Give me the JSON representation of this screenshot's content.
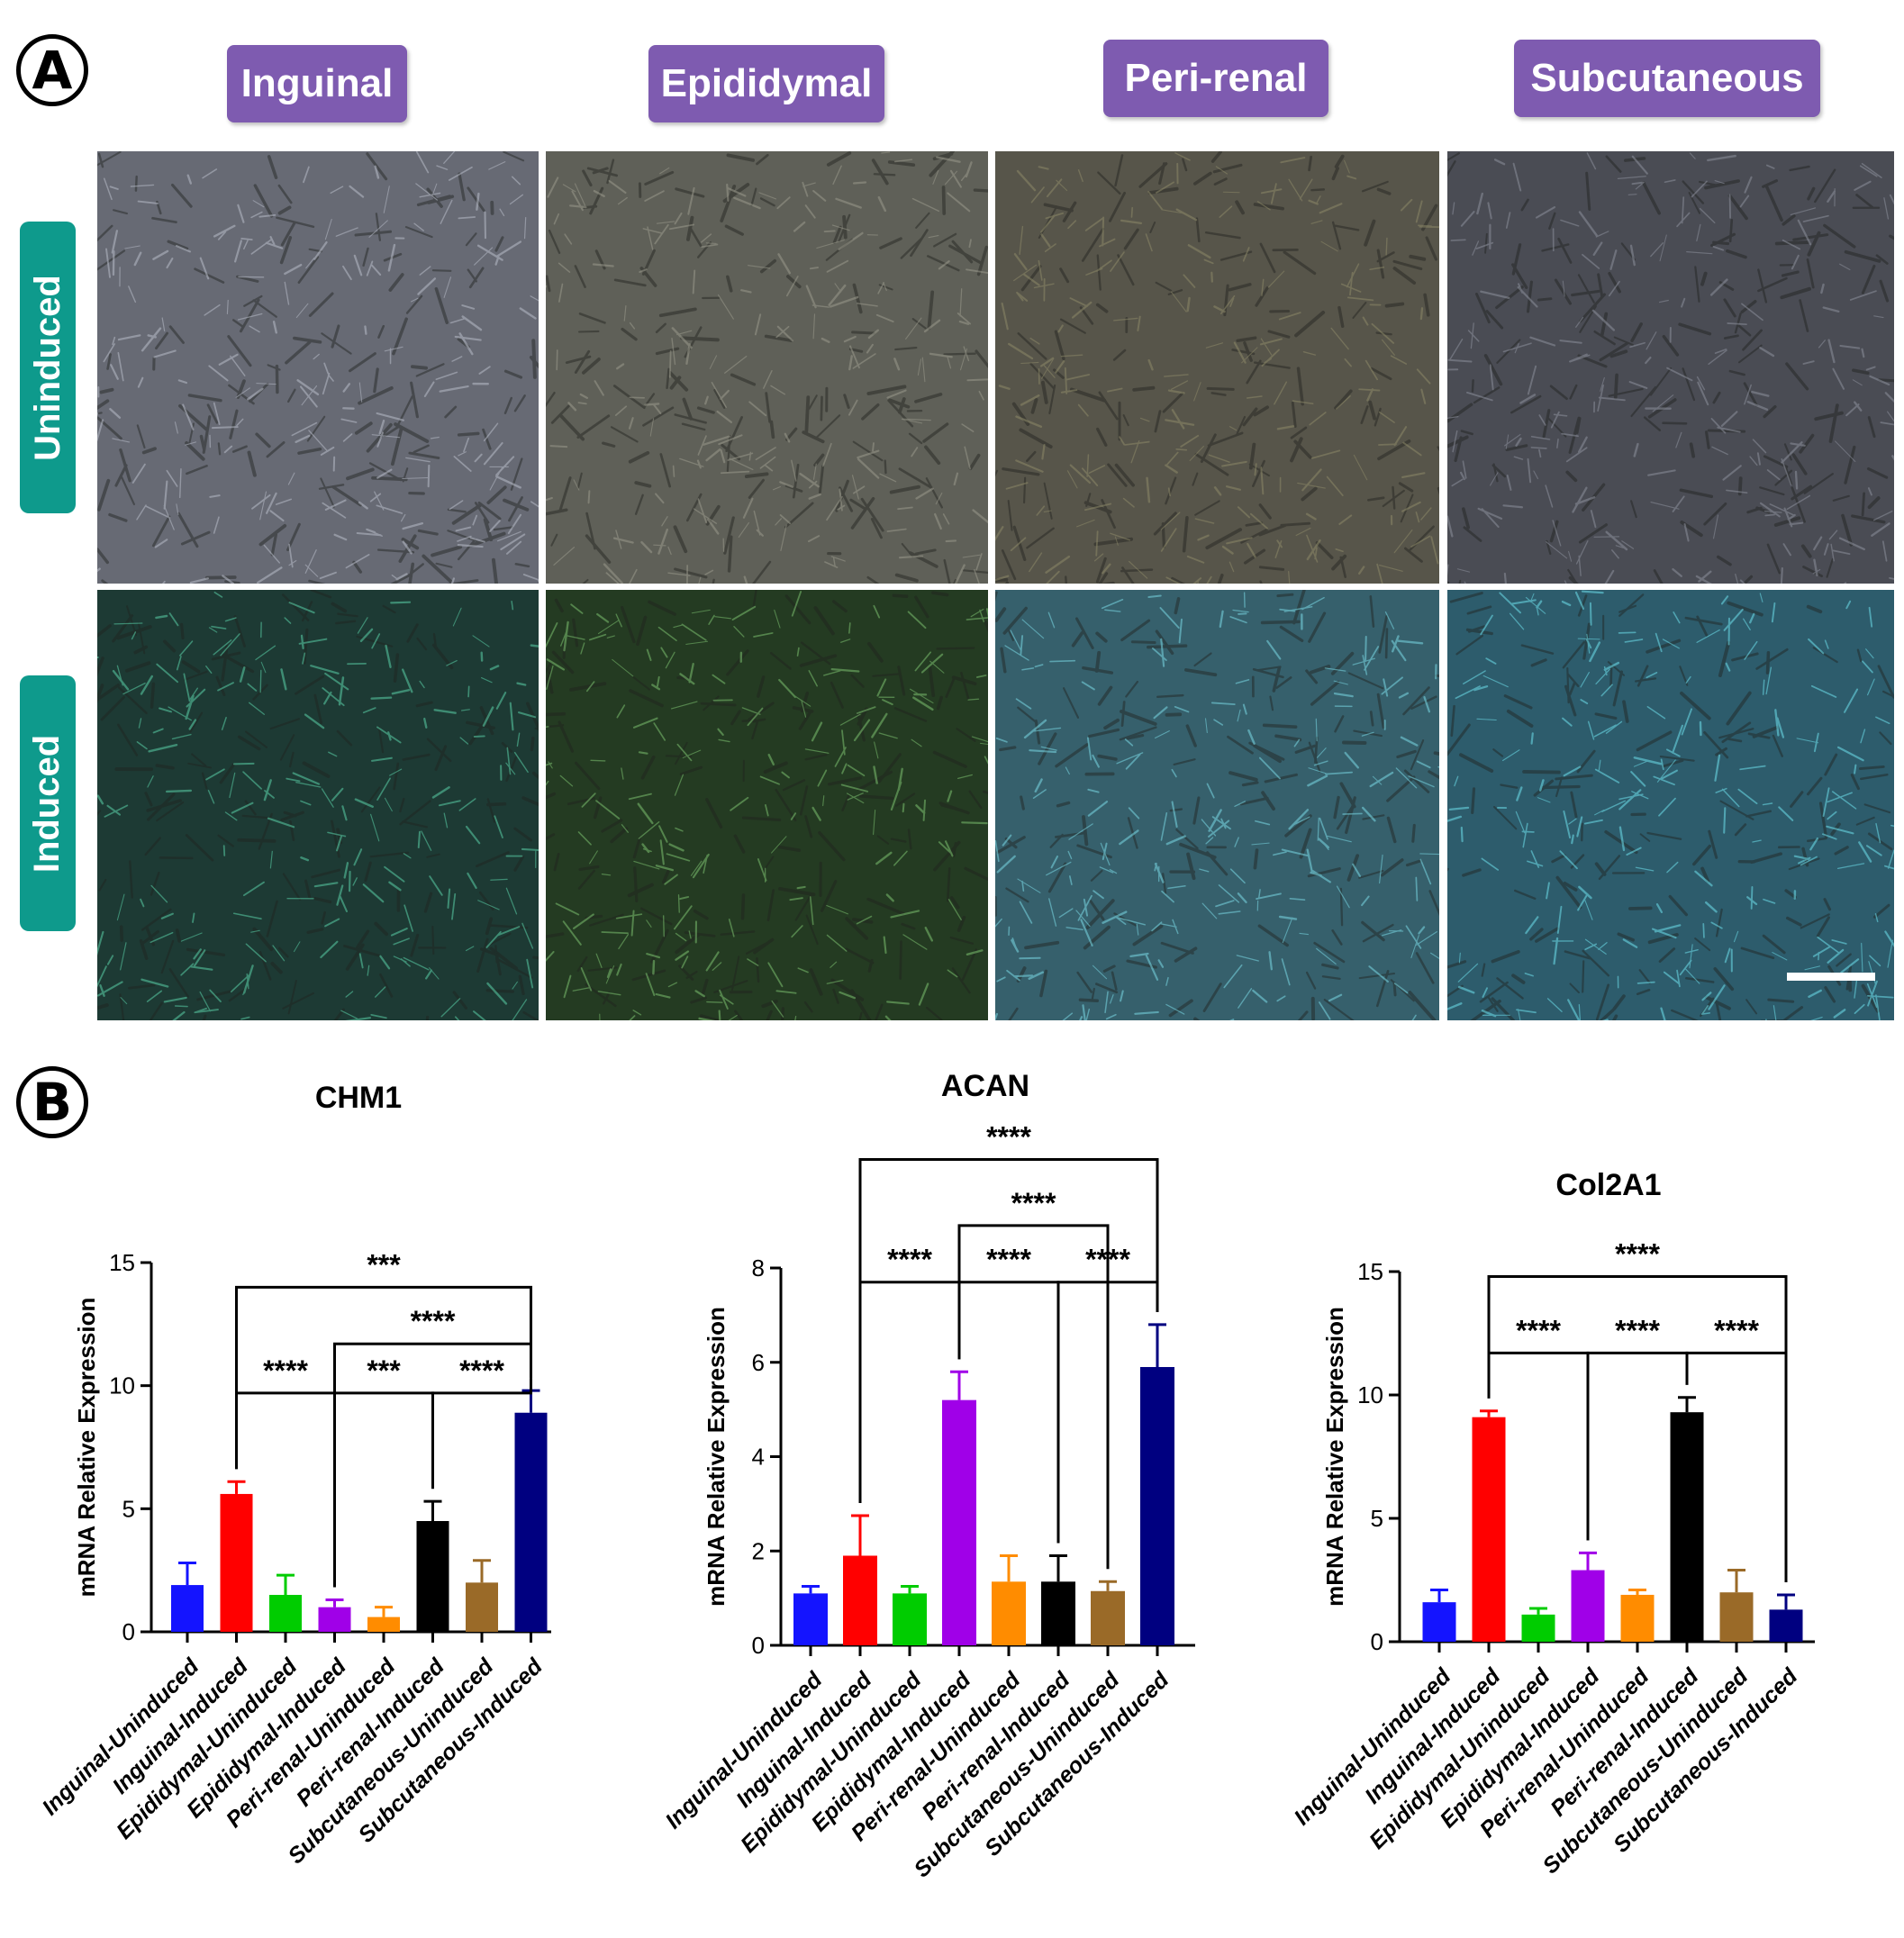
{
  "panelA": {
    "letter": "A",
    "columns": [
      "Inguinal",
      "Epididymal",
      "Peri-renal",
      "Subcutaneous"
    ],
    "rows": [
      "Uninduced",
      "Induced"
    ]
  },
  "panelB": {
    "letter": "B"
  },
  "chart_data": [
    {
      "type": "bar",
      "title": "CHM1",
      "ylabel": "mRNA Relative Expression",
      "ylim": [
        0,
        15
      ],
      "yticks": [
        0,
        5,
        10,
        15
      ],
      "categories": [
        "Inguinal-Uninduced",
        "Inguinal-Induced",
        "Epididymal-Uninduced",
        "Epididymal-Induced",
        "Peri-renal-Uninduced",
        "Peri-renal-Induced",
        "Subcutaneous-Uninduced",
        "Subcutaneous-Induced"
      ],
      "values": [
        1.9,
        5.6,
        1.5,
        1.0,
        0.6,
        4.5,
        2.0,
        8.9
      ],
      "errors": [
        0.9,
        0.5,
        0.8,
        0.3,
        0.4,
        0.8,
        0.9,
        0.9
      ],
      "colors": [
        "#1414ff",
        "#ff0000",
        "#00cc00",
        "#a000e8",
        "#ff8c00",
        "#000000",
        "#9a6a28",
        "#000080"
      ],
      "significance": [
        {
          "from": 2,
          "to": 8,
          "label": "***",
          "level": 14.0
        },
        {
          "from": 4,
          "to": 8,
          "label": "****",
          "level": 11.7
        },
        {
          "from": 2,
          "to": 4,
          "label": "****",
          "level": 9.7
        },
        {
          "from": 4,
          "to": 6,
          "label": "***",
          "level": 9.7
        },
        {
          "from": 6,
          "to": 8,
          "label": "****",
          "level": 9.7
        }
      ]
    },
    {
      "type": "bar",
      "title": "ACAN",
      "ylabel": "mRNA Relative Expression",
      "ylim": [
        0,
        8
      ],
      "yticks": [
        0,
        2,
        4,
        6,
        8
      ],
      "categories": [
        "Inguinal-Uninduced",
        "Inguinal-Induced",
        "Epididymal-Uninduced",
        "Epididymal-Induced",
        "Peri-renal-Uninduced",
        "Peri-renal-Induced",
        "Subcutaneous-Uninduced",
        "Subcutaneous-Induced"
      ],
      "values": [
        1.1,
        1.9,
        1.1,
        5.2,
        1.35,
        1.35,
        1.15,
        5.9
      ],
      "errors": [
        0.15,
        0.85,
        0.15,
        0.6,
        0.55,
        0.55,
        0.2,
        0.9
      ],
      "colors": [
        "#1414ff",
        "#ff0000",
        "#00cc00",
        "#a000e8",
        "#ff8c00",
        "#000000",
        "#9a6a28",
        "#000080"
      ],
      "significance": [
        {
          "from": 2,
          "to": 8,
          "label": "****",
          "level": 10.3
        },
        {
          "from": 4,
          "to": 7,
          "label": "****",
          "level": 8.9
        },
        {
          "from": 2,
          "to": 4,
          "label": "****",
          "level": 7.7
        },
        {
          "from": 4,
          "to": 6,
          "label": "****",
          "level": 7.7
        },
        {
          "from": 6,
          "to": 8,
          "label": "****",
          "level": 7.7
        }
      ]
    },
    {
      "type": "bar",
      "title": "Col2A1",
      "ylabel": "mRNA Relative Expression",
      "ylim": [
        0,
        15
      ],
      "yticks": [
        0,
        5,
        10,
        15
      ],
      "categories": [
        "Inguinal-Uninduced",
        "Inguinal-Induced",
        "Epididymal-Uninduced",
        "Epididymal-Induced",
        "Peri-renal-Uninduced",
        "Peri-renal-Induced",
        "Subcutaneous-Uninduced",
        "Subcutaneous-Induced"
      ],
      "values": [
        1.6,
        9.1,
        1.1,
        2.9,
        1.9,
        9.3,
        2.0,
        1.3
      ],
      "errors": [
        0.5,
        0.25,
        0.25,
        0.7,
        0.2,
        0.6,
        0.9,
        0.6
      ],
      "colors": [
        "#1414ff",
        "#ff0000",
        "#00cc00",
        "#a000e8",
        "#ff8c00",
        "#000000",
        "#9a6a28",
        "#000080"
      ],
      "significance": [
        {
          "from": 2,
          "to": 8,
          "label": "****",
          "level": 14.8
        },
        {
          "from": 2,
          "to": 4,
          "label": "****",
          "level": 11.7
        },
        {
          "from": 4,
          "to": 6,
          "label": "****",
          "level": 11.7
        },
        {
          "from": 6,
          "to": 8,
          "label": "****",
          "level": 11.7
        }
      ]
    }
  ]
}
